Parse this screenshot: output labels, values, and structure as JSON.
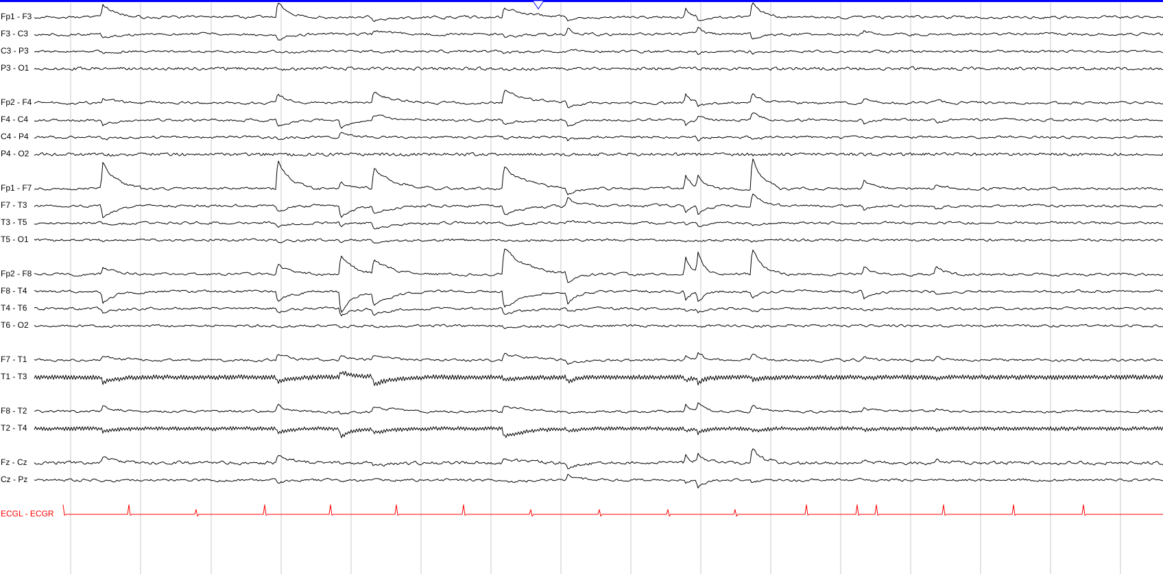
{
  "montage": {
    "channels": [
      {
        "label": "Fp1 - F3"
      },
      {
        "label": "F3 - C3"
      },
      {
        "label": "C3 - P3"
      },
      {
        "label": "P3 - O1"
      },
      {
        "label": "Fp2 - F4"
      },
      {
        "label": "F4 - C4"
      },
      {
        "label": "C4 - P4"
      },
      {
        "label": "P4 - O2"
      },
      {
        "label": "Fp1 - F7"
      },
      {
        "label": "F7 - T3"
      },
      {
        "label": "T3 - T5"
      },
      {
        "label": "T5 - O1"
      },
      {
        "label": "Fp2 - F8"
      },
      {
        "label": "F8 - T4"
      },
      {
        "label": "T4 - T6"
      },
      {
        "label": "T6 - O2"
      },
      {
        "label": "F7 - T1"
      },
      {
        "label": "T1 - T3"
      },
      {
        "label": "F8 - T2"
      },
      {
        "label": "T2 - T4"
      },
      {
        "label": "Fz - Cz"
      },
      {
        "label": "Cz - Pz"
      },
      {
        "label": "ECGL - ECGR"
      }
    ]
  },
  "colors": {
    "trace": "#000000",
    "ecg_trace": "#ff0000",
    "ecg_label": "#ff0000",
    "grid": "#c8c8c8",
    "top_bar": "#0000ff",
    "marker": "#0000ff",
    "background": "#ffffff"
  },
  "time_marker": {
    "icon": "triangle-down-icon",
    "name": "event-marker"
  }
}
